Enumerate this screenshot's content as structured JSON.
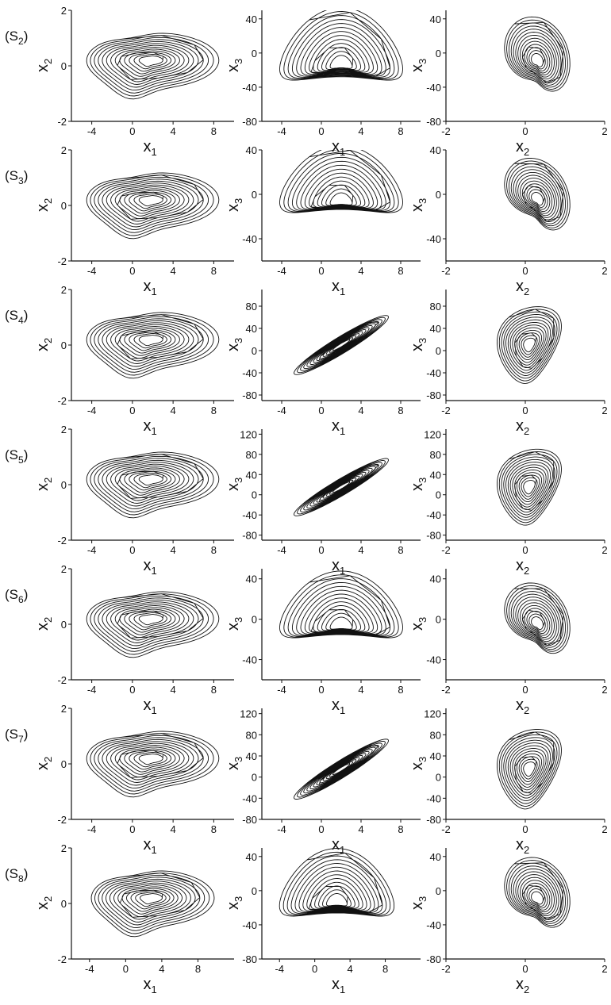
{
  "panel_columns": [
    {
      "xlabel": "x",
      "xsub": "1",
      "ylabel": "x",
      "ysub": "2"
    },
    {
      "xlabel": "x",
      "xsub": "1",
      "ylabel": "x",
      "ysub": "3"
    },
    {
      "xlabel": "x",
      "xsub": "2",
      "ylabel": "x",
      "ysub": "3"
    }
  ],
  "chart_data": [
    {
      "row_label": "(S",
      "row_sub": "2",
      "type": "line",
      "panels": [
        {
          "xlim": [
            -6,
            10
          ],
          "ylim": [
            -2,
            2
          ],
          "xticks": [
            "-4",
            "0",
            "4",
            "8"
          ],
          "yticks": [
            "-2",
            "0",
            "2"
          ],
          "curve": {
            "kind": "loop",
            "cx": 2,
            "cy": 0.2,
            "rx_max": 6.5,
            "ry_max": 1.0,
            "skew": 0.35
          }
        },
        {
          "xlim": [
            -6,
            10
          ],
          "ylim": [
            -80,
            50
          ],
          "xticks": [
            "-4",
            "0",
            "4",
            "8"
          ],
          "yticks": [
            "-80",
            "-40",
            "0",
            "40"
          ],
          "curve": {
            "kind": "butterfly",
            "cx": 2,
            "cy": -15,
            "rx_max": 6.2,
            "ry_max": 45
          }
        },
        {
          "xlim": [
            -2,
            2
          ],
          "ylim": [
            -80,
            50
          ],
          "xticks": [
            "-2",
            "0",
            "2"
          ],
          "yticks": [
            "-80",
            "-40",
            "0",
            "40"
          ],
          "curve": {
            "kind": "wing",
            "cx": 0.3,
            "cy": -10,
            "rx_max": 0.9,
            "ry_max": 45
          }
        }
      ]
    },
    {
      "row_label": "(S",
      "row_sub": "3",
      "type": "line",
      "panels": [
        {
          "xlim": [
            -6,
            10
          ],
          "ylim": [
            -2,
            2
          ],
          "xticks": [
            "-4",
            "0",
            "4",
            "8"
          ],
          "yticks": [
            "-2",
            "0",
            "2"
          ],
          "curve": {
            "kind": "loop",
            "cx": 2,
            "cy": 0.2,
            "rx_max": 6.5,
            "ry_max": 1.0,
            "skew": 0.35
          }
        },
        {
          "xlim": [
            -6,
            10
          ],
          "ylim": [
            -60,
            40
          ],
          "xticks": [
            "-4",
            "0",
            "4",
            "8"
          ],
          "yticks": [
            "-40",
            "0",
            "40"
          ],
          "curve": {
            "kind": "butterfly",
            "cx": 2,
            "cy": -8,
            "rx_max": 6.2,
            "ry_max": 32
          }
        },
        {
          "xlim": [
            -2,
            2
          ],
          "ylim": [
            -60,
            40
          ],
          "xticks": [
            "-2",
            "0",
            "2"
          ],
          "yticks": [
            "-40",
            "0",
            "40"
          ],
          "curve": {
            "kind": "wing",
            "cx": 0.3,
            "cy": -5,
            "rx_max": 0.9,
            "ry_max": 32
          }
        }
      ]
    },
    {
      "row_label": "(S",
      "row_sub": "4",
      "type": "line",
      "panels": [
        {
          "xlim": [
            -6,
            10
          ],
          "ylim": [
            -2,
            2
          ],
          "xticks": [
            "-4",
            "0",
            "4",
            "8"
          ],
          "yticks": [
            "-2",
            "0",
            "2"
          ],
          "curve": {
            "kind": "loop",
            "cx": 2,
            "cy": 0.2,
            "rx_max": 6.5,
            "ry_max": 1.0,
            "skew": 0.35
          }
        },
        {
          "xlim": [
            -6,
            10
          ],
          "ylim": [
            -90,
            110
          ],
          "xticks": [
            "-4",
            "0",
            "4",
            "8"
          ],
          "yticks": [
            "-80",
            "-40",
            "0",
            "40",
            "80"
          ],
          "curve": {
            "kind": "diagonal",
            "cx": 2,
            "cy": 10,
            "rx_max": 6,
            "ry_max": 75
          }
        },
        {
          "xlim": [
            -2,
            2
          ],
          "ylim": [
            -90,
            110
          ],
          "xticks": [
            "-2",
            "0",
            "2"
          ],
          "yticks": [
            "-80",
            "-40",
            "0",
            "40",
            "80"
          ],
          "curve": {
            "kind": "teardrop",
            "cx": 0.1,
            "cy": 10,
            "rx_max": 1.1,
            "ry_max": 75
          }
        }
      ]
    },
    {
      "row_label": "(S",
      "row_sub": "5",
      "type": "line",
      "panels": [
        {
          "xlim": [
            -6,
            10
          ],
          "ylim": [
            -2,
            2
          ],
          "xticks": [
            "-4",
            "0",
            "4",
            "8"
          ],
          "yticks": [
            "-2",
            "0",
            "2"
          ],
          "curve": {
            "kind": "loop",
            "cx": 2,
            "cy": 0.2,
            "rx_max": 6.5,
            "ry_max": 1.0,
            "skew": 0.35
          }
        },
        {
          "xlim": [
            -6,
            10
          ],
          "ylim": [
            -90,
            130
          ],
          "xticks": [
            "-4",
            "0",
            "4",
            "8"
          ],
          "yticks": [
            "-80",
            "-40",
            "0",
            "40",
            "80",
            "120"
          ],
          "curve": {
            "kind": "diagonal",
            "cx": 2,
            "cy": 15,
            "rx_max": 6,
            "ry_max": 80
          }
        },
        {
          "xlim": [
            -2,
            2
          ],
          "ylim": [
            -90,
            130
          ],
          "xticks": [
            "-2",
            "0",
            "2"
          ],
          "yticks": [
            "-80",
            "-40",
            "0",
            "40",
            "80",
            "120"
          ],
          "curve": {
            "kind": "teardrop",
            "cx": 0.1,
            "cy": 15,
            "rx_max": 1.1,
            "ry_max": 82
          }
        }
      ]
    },
    {
      "row_label": "(S",
      "row_sub": "6",
      "type": "line",
      "panels": [
        {
          "xlim": [
            -6,
            10
          ],
          "ylim": [
            -2,
            2
          ],
          "xticks": [
            "-4",
            "0",
            "4",
            "8"
          ],
          "yticks": [
            "-2",
            "0",
            "2"
          ],
          "curve": {
            "kind": "loop",
            "cx": 2,
            "cy": 0.2,
            "rx_max": 6.5,
            "ry_max": 1.0,
            "skew": 0.35
          }
        },
        {
          "xlim": [
            -6,
            10
          ],
          "ylim": [
            -60,
            50
          ],
          "xticks": [
            "-4",
            "0",
            "4",
            "8"
          ],
          "yticks": [
            "-40",
            "0",
            "40"
          ],
          "curve": {
            "kind": "butterfly",
            "cx": 2,
            "cy": -8,
            "rx_max": 6.2,
            "ry_max": 35
          }
        },
        {
          "xlim": [
            -2,
            2
          ],
          "ylim": [
            -60,
            50
          ],
          "xticks": [
            "-2",
            "0",
            "2"
          ],
          "yticks": [
            "-40",
            "0",
            "40"
          ],
          "curve": {
            "kind": "wing",
            "cx": 0.3,
            "cy": -5,
            "rx_max": 0.9,
            "ry_max": 35
          }
        }
      ]
    },
    {
      "row_label": "(S",
      "row_sub": "7",
      "type": "line",
      "panels": [
        {
          "xlim": [
            -6,
            10
          ],
          "ylim": [
            -2,
            2
          ],
          "xticks": [
            "-4",
            "0",
            "4",
            "8"
          ],
          "yticks": [
            "-2",
            "0",
            "2"
          ],
          "curve": {
            "kind": "loop",
            "cx": 2,
            "cy": 0.2,
            "rx_max": 6.5,
            "ry_max": 1.0,
            "skew": 0.35
          }
        },
        {
          "xlim": [
            -6,
            10
          ],
          "ylim": [
            -80,
            130
          ],
          "xticks": [
            "-4",
            "0",
            "4",
            "8"
          ],
          "yticks": [
            "-80",
            "-40",
            "0",
            "40",
            "80",
            "120"
          ],
          "curve": {
            "kind": "diagonal",
            "cx": 2,
            "cy": 15,
            "rx_max": 6,
            "ry_max": 80
          }
        },
        {
          "xlim": [
            -2,
            2
          ],
          "ylim": [
            -80,
            130
          ],
          "xticks": [
            "-2",
            "0",
            "2"
          ],
          "yticks": [
            "-80",
            "-40",
            "0",
            "40",
            "80",
            "120"
          ],
          "curve": {
            "kind": "teardrop",
            "cx": 0.1,
            "cy": 15,
            "rx_max": 1.1,
            "ry_max": 82
          }
        }
      ]
    },
    {
      "row_label": "(S",
      "row_sub": "8",
      "type": "line",
      "panels": [
        {
          "xlim": [
            -6,
            12
          ],
          "ylim": [
            -2,
            2
          ],
          "xticks": [
            "-4",
            "0",
            "4",
            "8"
          ],
          "yticks": [
            "-2",
            "0",
            "2"
          ],
          "curve": {
            "kind": "loop",
            "cx": 3,
            "cy": 0.2,
            "rx_max": 6.8,
            "ry_max": 1.0,
            "skew": 0.35
          }
        },
        {
          "xlim": [
            -6,
            12
          ],
          "ylim": [
            -80,
            50
          ],
          "xticks": [
            "-4",
            "0",
            "4",
            "8"
          ],
          "yticks": [
            "-80",
            "-40",
            "0",
            "40"
          ],
          "curve": {
            "kind": "butterfly",
            "cx": 2.5,
            "cy": -15,
            "rx_max": 6.5,
            "ry_max": 42
          }
        },
        {
          "xlim": [
            -2,
            2
          ],
          "ylim": [
            -80,
            50
          ],
          "xticks": [
            "-2",
            "0",
            "2"
          ],
          "yticks": [
            "-80",
            "-40",
            "0",
            "40"
          ],
          "curve": {
            "kind": "wing",
            "cx": 0.3,
            "cy": -10,
            "rx_max": 0.9,
            "ry_max": 42
          }
        }
      ]
    }
  ]
}
